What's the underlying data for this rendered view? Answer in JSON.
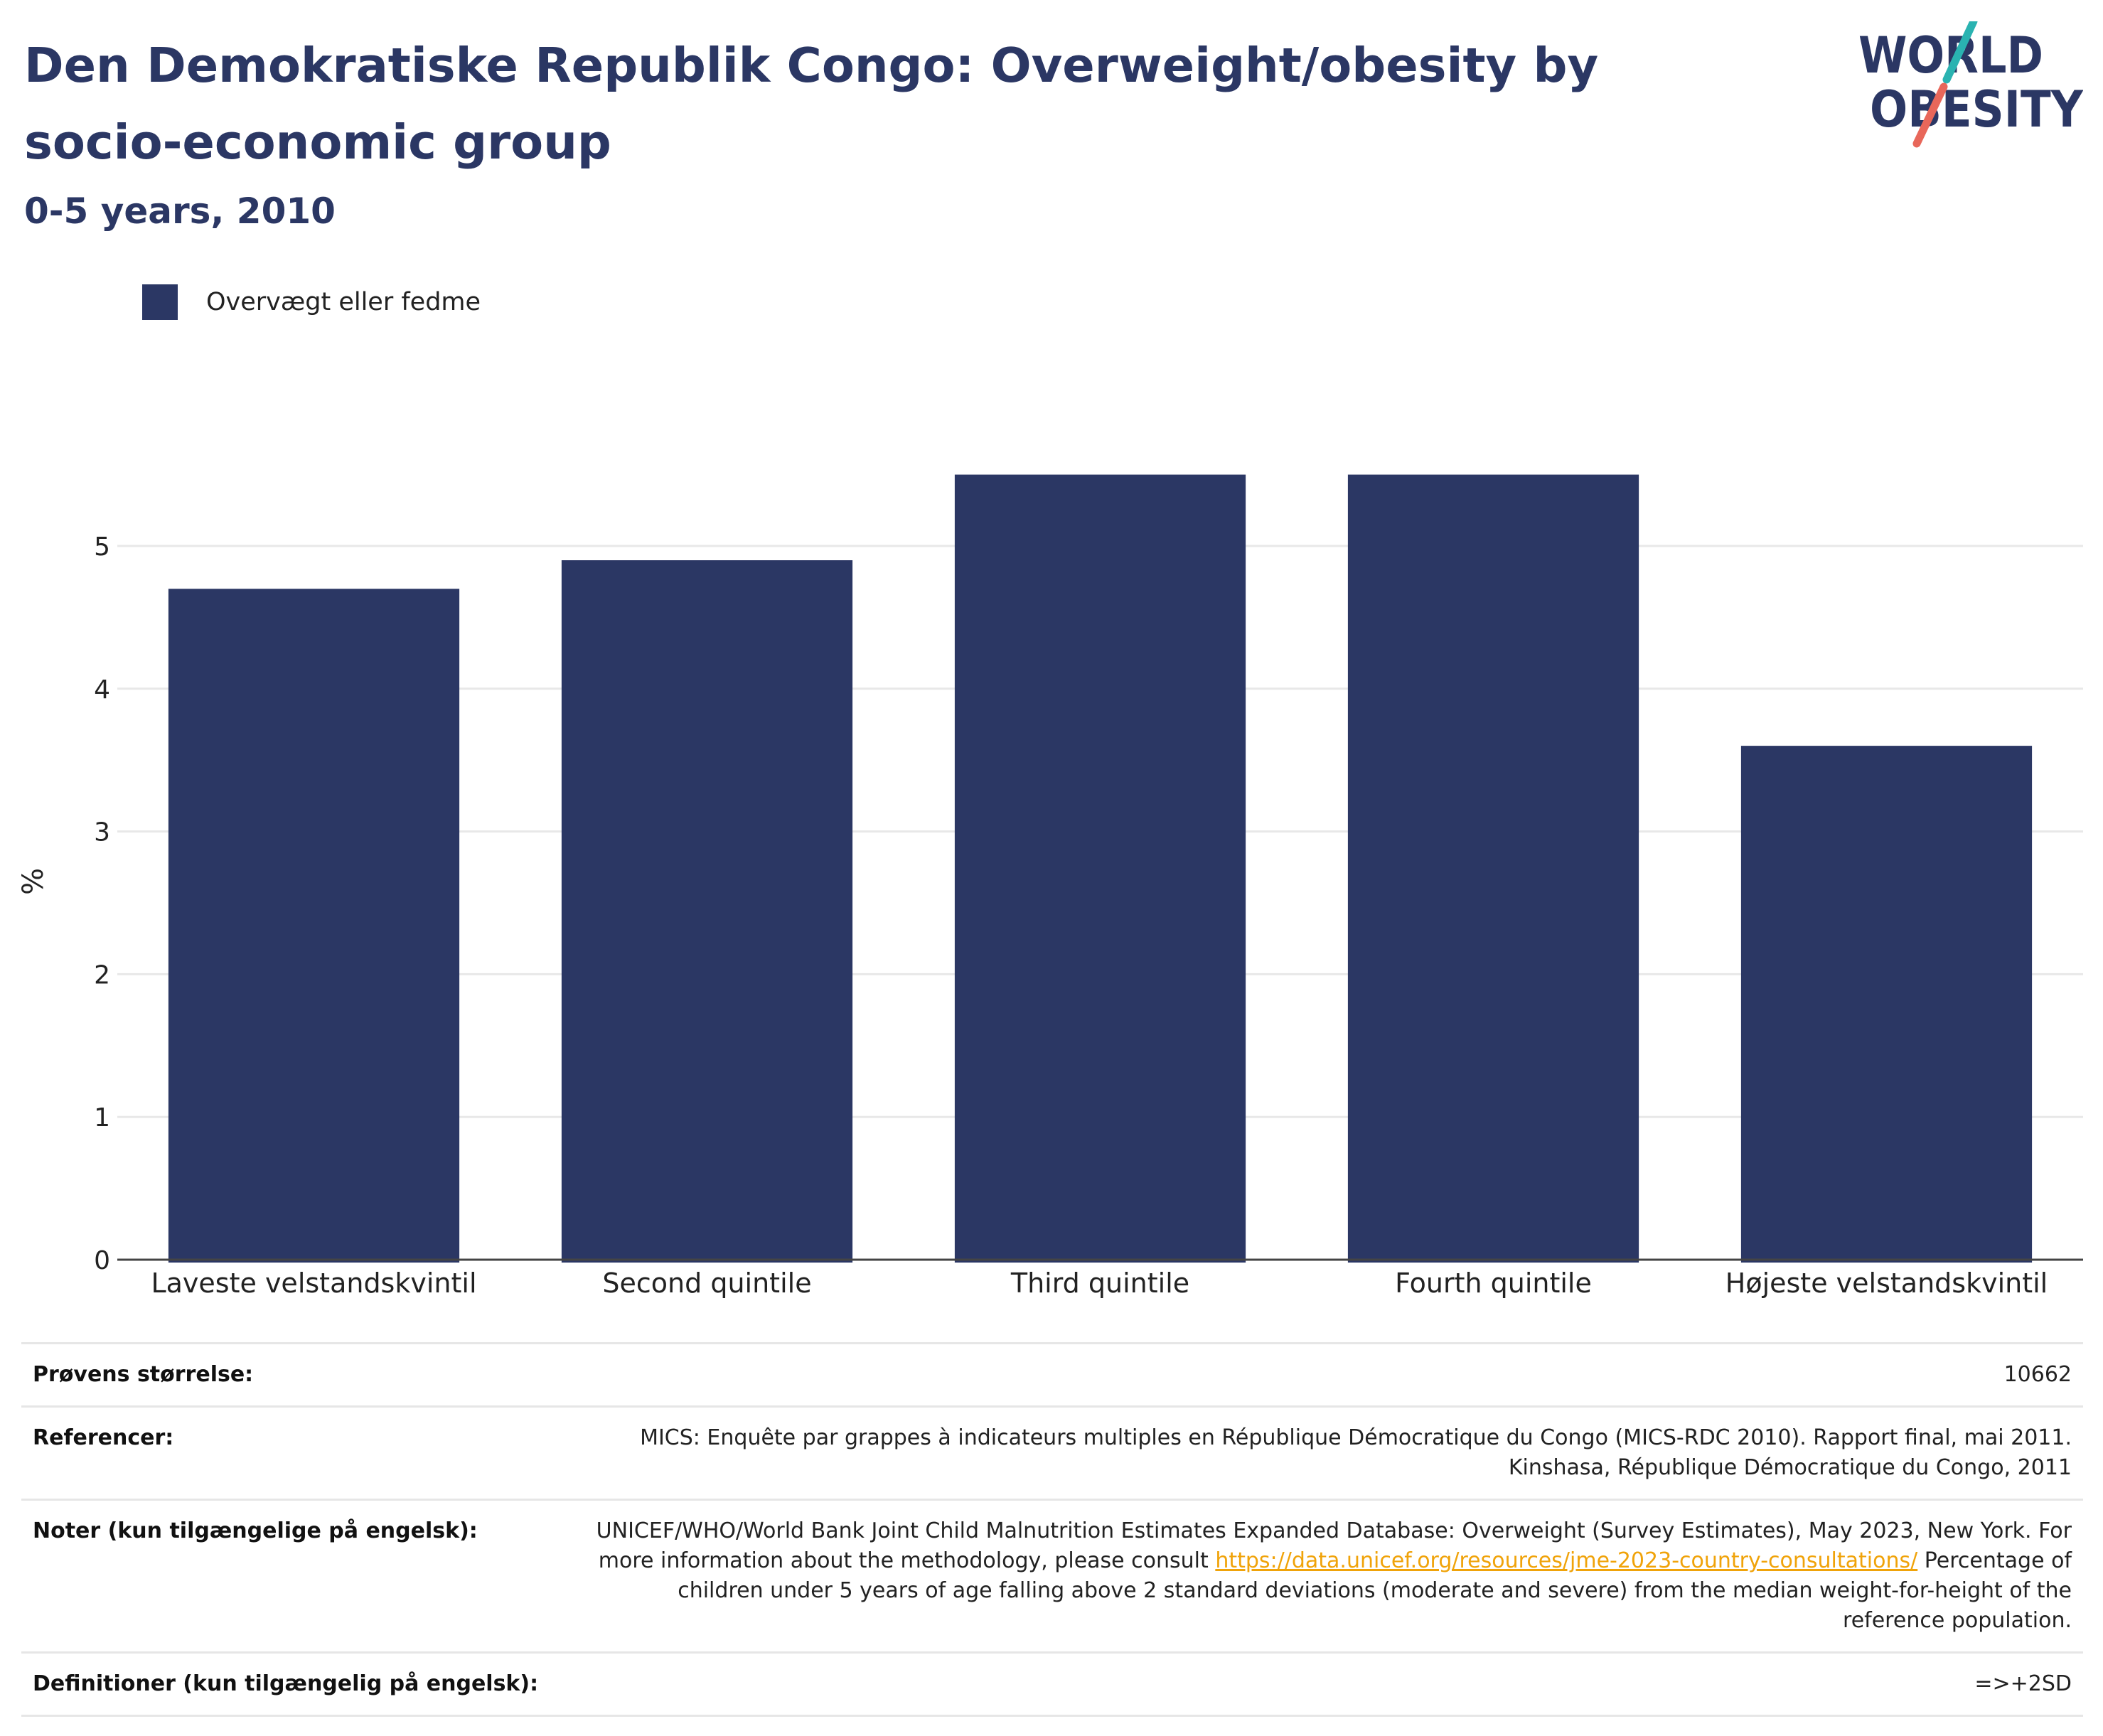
{
  "header": {
    "title": "Den Demokratiske Republik Congo: Overweight/obesity by socio-economic group",
    "subtitle": "0-5 years, 2010"
  },
  "logo": {
    "line1": "WORLD",
    "line2": "OBESITY",
    "colors": {
      "text": "#2b3764",
      "slash_top": "#2ab3b1",
      "slash_bottom": "#e8675a"
    }
  },
  "legend": {
    "items": [
      {
        "label": "Overvægt eller fedme",
        "color": "#2b3764"
      }
    ]
  },
  "chart_data": {
    "type": "bar",
    "categories": [
      "Laveste velstandskvintil",
      "Second quintile",
      "Third quintile",
      "Fourth quintile",
      "Højeste velstandskvintil"
    ],
    "series": [
      {
        "name": "Overvægt eller fedme",
        "values": [
          4.7,
          4.9,
          5.5,
          5.5,
          3.6
        ],
        "color": "#2b3764"
      }
    ],
    "xlabel": "",
    "ylabel": "%",
    "ylim": [
      0,
      6
    ],
    "yticks": [
      0,
      1,
      2,
      3,
      4,
      5
    ],
    "grid": true,
    "legend_position": "top-left"
  },
  "info": {
    "sample_size": {
      "label": "Prøvens størrelse:",
      "value": "10662"
    },
    "references": {
      "label": "Referencer:",
      "value": "MICS: Enquête par grappes à indicateurs multiples en République Démocratique du Congo (MICS-RDC 2010). Rapport final, mai 2011. Kinshasa, République Démocratique du Congo, 2011"
    },
    "notes": {
      "label": "Noter (kun tilgængelige på engelsk):",
      "text_before": "UNICEF/WHO/World Bank Joint Child Malnutrition Estimates Expanded Database: Overweight (Survey Estimates), May 2023, New York. For more information about the methodology, please consult",
      "link": "https://data.unicef.org/resources/jme-2023-country-consultations/",
      "text_after": "Percentage of children under 5 years of age falling above 2 standard deviations (moderate and severe) from the median weight-for-height of the reference population."
    },
    "definitions": {
      "label": "Definitioner (kun tilgængelig på engelsk):",
      "value": "=>+2SD"
    }
  }
}
